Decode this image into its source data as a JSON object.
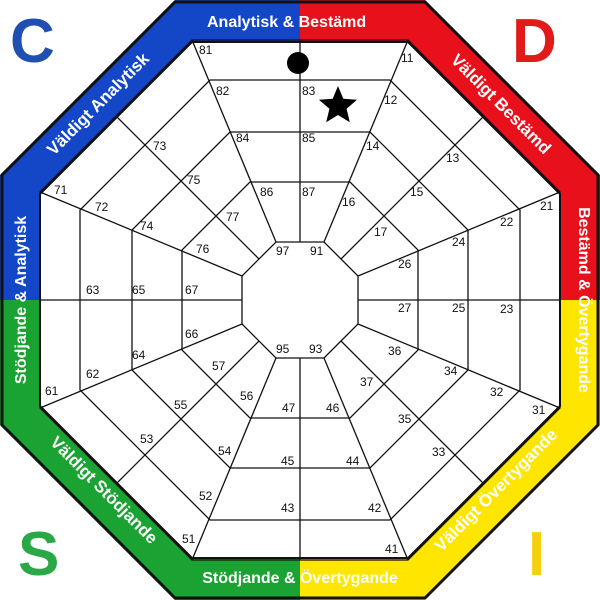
{
  "colors": {
    "blue": "#1447c8",
    "red": "#e8101b",
    "yellow": "#ffe600",
    "green": "#1aa332",
    "border": "#111111",
    "c_letter": "#1f4fb0",
    "d_letter": "#e11a1a",
    "s_letter": "#2aa845",
    "i_letter": "#f4d10a"
  },
  "corner_letters": {
    "top_left": "C",
    "top_right": "D",
    "bottom_left": "S",
    "bottom_right": "I"
  },
  "band_labels": {
    "top": "Analytisk & Bestämd",
    "top_right": "Väldigt Bestämd",
    "right": "Bestämd & Övertygande",
    "bottom_right": "Väldigt Övertygande",
    "bottom": "Stödjande & Övertygande",
    "bottom_left": "Väldigt Stödjande",
    "left": "Stödjande & Analytisk",
    "top_left": "Väldigt Analytisk"
  },
  "cells": {
    "c11": "11",
    "c12": "12",
    "c13": "13",
    "c14": "14",
    "c15": "15",
    "c16": "16",
    "c17": "17",
    "c21": "21",
    "c22": "22",
    "c23": "23",
    "c24": "24",
    "c25": "25",
    "c26": "26",
    "c27": "27",
    "c31": "31",
    "c32": "32",
    "c33": "33",
    "c34": "34",
    "c35": "35",
    "c36": "36",
    "c37": "37",
    "c41": "41",
    "c42": "42",
    "c43": "43",
    "c44": "44",
    "c45": "45",
    "c46": "46",
    "c47": "47",
    "c51": "51",
    "c52": "52",
    "c53": "53",
    "c54": "54",
    "c55": "55",
    "c56": "56",
    "c57": "57",
    "c61": "61",
    "c62": "62",
    "c63": "63",
    "c64": "64",
    "c65": "65",
    "c66": "66",
    "c67": "67",
    "c71": "71",
    "c72": "72",
    "c73": "73",
    "c74": "74",
    "c75": "75",
    "c76": "76",
    "c77": "77",
    "c81": "81",
    "c82": "82",
    "c83": "83",
    "c84": "84",
    "c85": "85",
    "c86": "86",
    "c87": "87",
    "c91": "91",
    "c93": "93",
    "c95": "95",
    "c97": "97"
  },
  "markers": {
    "dot": "filled-circle-marker",
    "star": "star-marker"
  }
}
